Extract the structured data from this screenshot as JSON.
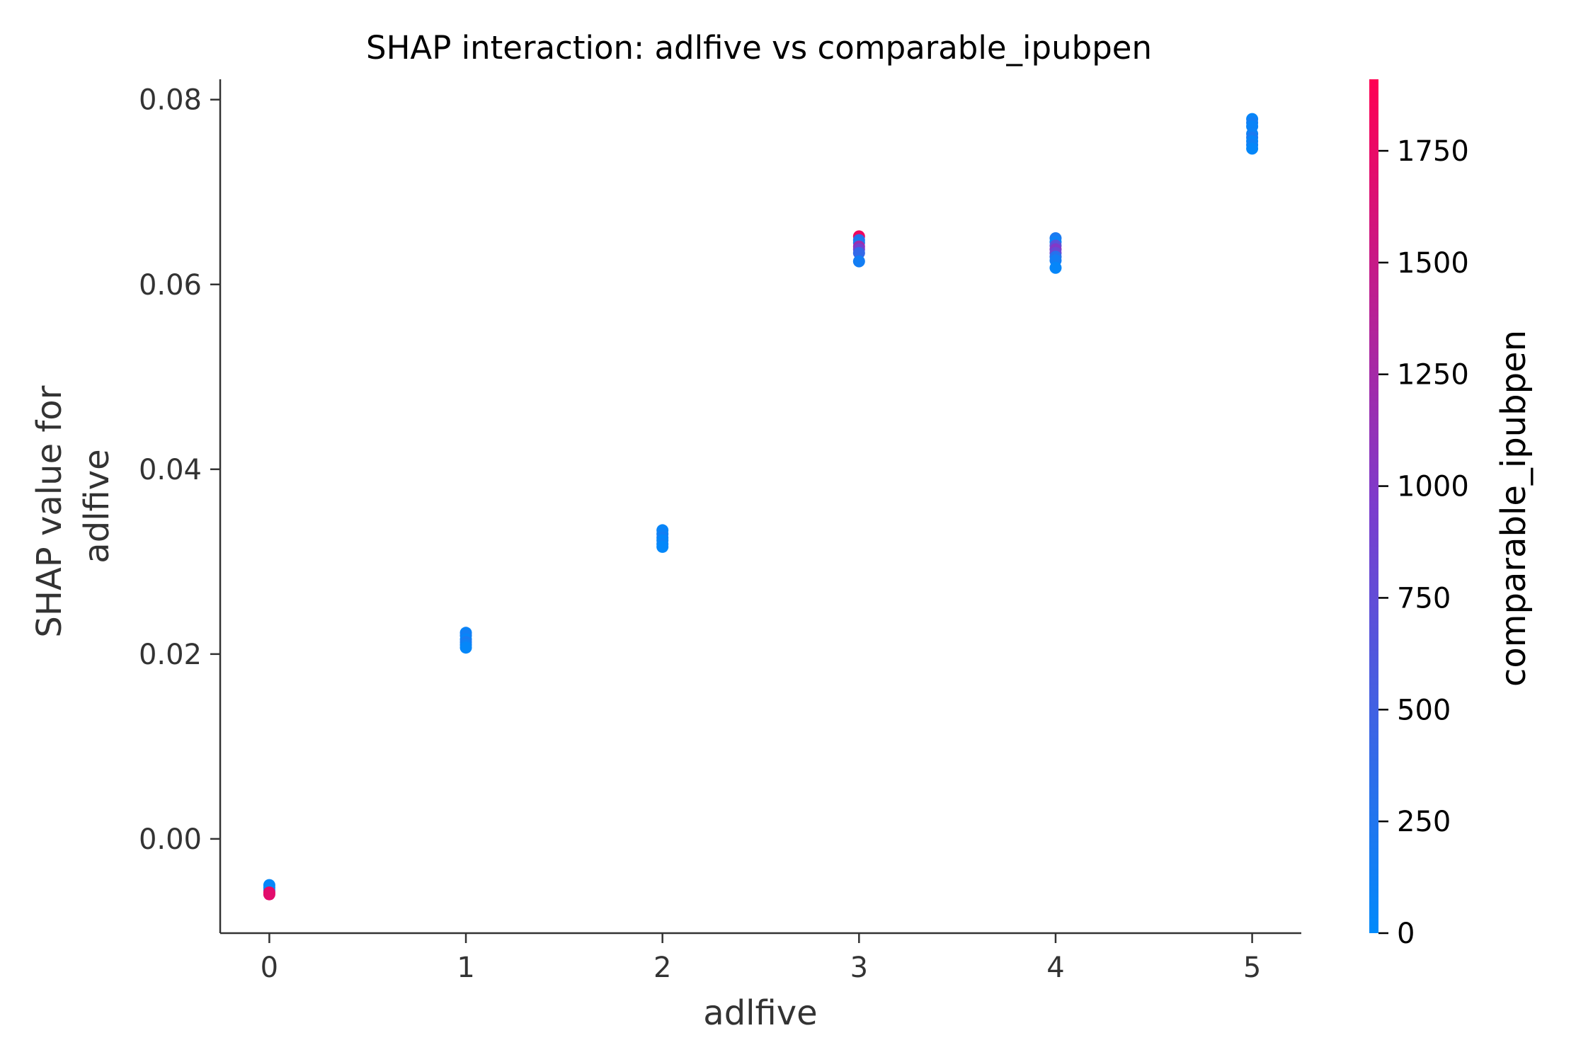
{
  "chart_data": {
    "type": "scatter",
    "title": "SHAP interaction: adlfive vs comparable_ipubpen",
    "xlabel": "adlfive",
    "ylabel": [
      "SHAP value for",
      "adlfive"
    ],
    "xlim": [
      -0.25,
      5.25
    ],
    "ylim": [
      -0.0102,
      0.0822
    ],
    "xticks": [
      0,
      1,
      2,
      3,
      4,
      5
    ],
    "xtick_labels": [
      "0",
      "1",
      "2",
      "3",
      "4",
      "5"
    ],
    "yticks": [
      0.0,
      0.02,
      0.04,
      0.06,
      0.08
    ],
    "ytick_labels": [
      "0.00",
      "0.02",
      "0.04",
      "0.06",
      "0.08"
    ],
    "grid": false,
    "colorbar": {
      "label": "comparable_ipubpen",
      "range": [
        0,
        1910
      ],
      "ticks": [
        0,
        250,
        500,
        750,
        1000,
        1250,
        1500,
        1750
      ],
      "tick_labels": [
        "0",
        "250",
        "500",
        "750",
        "1000",
        "1250",
        "1500",
        "1750"
      ],
      "low_color": "#008afb",
      "mid_color": "#7c3ccd",
      "high_color": "#ff0052"
    },
    "points": [
      {
        "x": 0,
        "y": -0.005,
        "c": 30
      },
      {
        "x": 0,
        "y": -0.0053,
        "c": 60
      },
      {
        "x": 0,
        "y": -0.0056,
        "c": 20
      },
      {
        "x": 0,
        "y": -0.0058,
        "c": 1800
      },
      {
        "x": 0,
        "y": -0.006,
        "c": 1700
      },
      {
        "x": 1,
        "y": 0.0223,
        "c": 80
      },
      {
        "x": 1,
        "y": 0.022,
        "c": 150
      },
      {
        "x": 1,
        "y": 0.0216,
        "c": 60
      },
      {
        "x": 1,
        "y": 0.0213,
        "c": 200
      },
      {
        "x": 1,
        "y": 0.021,
        "c": 120
      },
      {
        "x": 1,
        "y": 0.0207,
        "c": 40
      },
      {
        "x": 2,
        "y": 0.0334,
        "c": 60
      },
      {
        "x": 2,
        "y": 0.033,
        "c": 100
      },
      {
        "x": 2,
        "y": 0.0326,
        "c": 150
      },
      {
        "x": 2,
        "y": 0.0323,
        "c": 40
      },
      {
        "x": 2,
        "y": 0.0319,
        "c": 90
      },
      {
        "x": 2,
        "y": 0.0316,
        "c": 30
      },
      {
        "x": 3,
        "y": 0.0652,
        "c": 1800
      },
      {
        "x": 3,
        "y": 0.0648,
        "c": 300
      },
      {
        "x": 3,
        "y": 0.0645,
        "c": 200
      },
      {
        "x": 3,
        "y": 0.0641,
        "c": 1200
      },
      {
        "x": 3,
        "y": 0.0638,
        "c": 900
      },
      {
        "x": 3,
        "y": 0.0634,
        "c": 400
      },
      {
        "x": 3,
        "y": 0.0625,
        "c": 150
      },
      {
        "x": 4,
        "y": 0.065,
        "c": 200
      },
      {
        "x": 4,
        "y": 0.0646,
        "c": 100
      },
      {
        "x": 4,
        "y": 0.0642,
        "c": 700
      },
      {
        "x": 4,
        "y": 0.0638,
        "c": 1000
      },
      {
        "x": 4,
        "y": 0.0634,
        "c": 800
      },
      {
        "x": 4,
        "y": 0.063,
        "c": 300
      },
      {
        "x": 4,
        "y": 0.0626,
        "c": 150
      },
      {
        "x": 4,
        "y": 0.0618,
        "c": 50
      },
      {
        "x": 5,
        "y": 0.0779,
        "c": 60
      },
      {
        "x": 5,
        "y": 0.0775,
        "c": 150
      },
      {
        "x": 5,
        "y": 0.0771,
        "c": 80
      },
      {
        "x": 5,
        "y": 0.0763,
        "c": 100
      },
      {
        "x": 5,
        "y": 0.0759,
        "c": 200
      },
      {
        "x": 5,
        "y": 0.0755,
        "c": 60
      },
      {
        "x": 5,
        "y": 0.0751,
        "c": 120
      },
      {
        "x": 5,
        "y": 0.0747,
        "c": 40
      }
    ]
  }
}
